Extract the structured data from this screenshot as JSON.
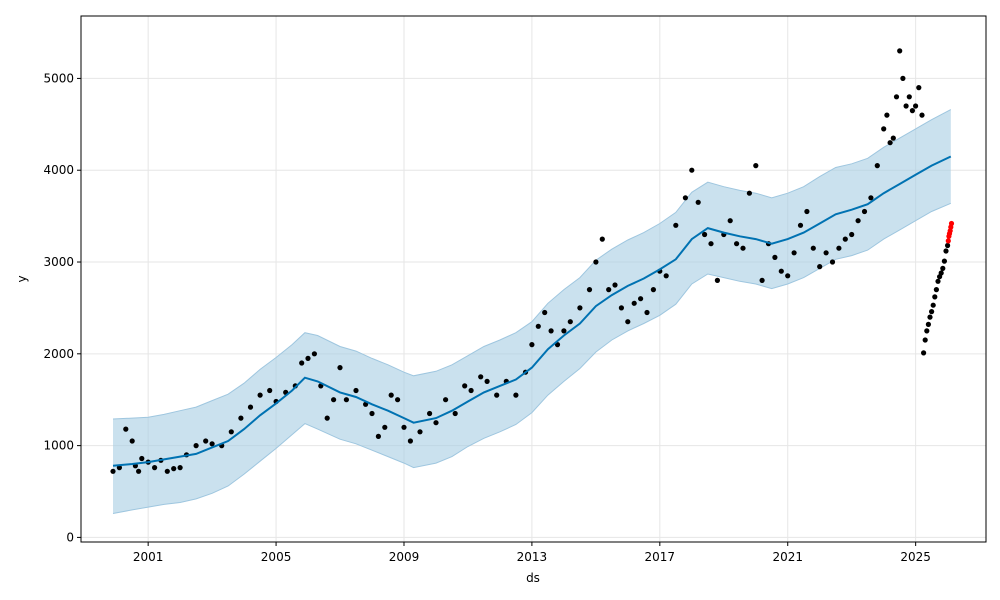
{
  "chart_data": {
    "type": "scatter",
    "title": "",
    "xlabel": "ds",
    "ylabel": "y",
    "xlim": [
      1998.9,
      2027.2
    ],
    "ylim": [
      -50,
      5680
    ],
    "grid": true,
    "legend": "none",
    "x_ticks": [
      2001,
      2005,
      2009,
      2013,
      2017,
      2021,
      2025
    ],
    "x_tick_labels": [
      "2001",
      "2005",
      "2009",
      "2013",
      "2017",
      "2021",
      "2025"
    ],
    "y_ticks": [
      0,
      1000,
      2000,
      3000,
      4000,
      5000
    ],
    "y_tick_labels": [
      "0",
      "1000",
      "2000",
      "3000",
      "4000",
      "5000"
    ],
    "colors": {
      "observed": "#000000",
      "recent": "#ff0000",
      "forecast_line": "#0072b2",
      "interval_fill": "#a6cde2",
      "interval_edge": "#9ec6df",
      "grid": "#e6e6e6"
    },
    "series": [
      {
        "role": "forecast",
        "x": [
          1999.9,
          2000.5,
          2001.0,
          2001.5,
          2002.0,
          2002.5,
          2003.0,
          2003.5,
          2004.0,
          2004.5,
          2005.0,
          2005.5,
          2005.9,
          2006.3,
          2007.0,
          2007.5,
          2008.0,
          2008.5,
          2009.0,
          2009.3,
          2010.0,
          2010.5,
          2011.0,
          2011.5,
          2012.0,
          2012.5,
          2013.0,
          2013.5,
          2014.0,
          2014.5,
          2015.0,
          2015.5,
          2016.0,
          2016.5,
          2017.0,
          2017.5,
          2018.0,
          2018.5,
          2019.0,
          2019.5,
          2020.0,
          2020.5,
          2021.0,
          2021.5,
          2022.0,
          2022.5,
          2023.0,
          2023.5,
          2024.0,
          2024.5,
          2025.0,
          2025.5,
          2026.1
        ],
        "yhat": [
          780,
          800,
          820,
          850,
          880,
          910,
          980,
          1050,
          1180,
          1330,
          1460,
          1600,
          1740,
          1700,
          1580,
          1530,
          1450,
          1380,
          1300,
          1250,
          1300,
          1380,
          1480,
          1580,
          1650,
          1720,
          1850,
          2050,
          2200,
          2330,
          2520,
          2640,
          2740,
          2820,
          2920,
          3030,
          3250,
          3370,
          3320,
          3280,
          3250,
          3200,
          3250,
          3320,
          3420,
          3520,
          3570,
          3630,
          3750,
          3850,
          3950,
          4050,
          4150
        ],
        "yhat_lower": [
          260,
          300,
          330,
          360,
          380,
          420,
          480,
          560,
          690,
          830,
          970,
          1120,
          1240,
          1180,
          1070,
          1020,
          950,
          880,
          810,
          760,
          810,
          880,
          990,
          1080,
          1150,
          1230,
          1360,
          1550,
          1700,
          1840,
          2020,
          2150,
          2250,
          2330,
          2420,
          2540,
          2760,
          2870,
          2830,
          2790,
          2760,
          2710,
          2760,
          2830,
          2930,
          3030,
          3070,
          3130,
          3250,
          3350,
          3450,
          3550,
          3640
        ],
        "yhat_upper": [
          1290,
          1300,
          1310,
          1340,
          1380,
          1420,
          1490,
          1560,
          1680,
          1830,
          1960,
          2100,
          2230,
          2200,
          2080,
          2030,
          1950,
          1880,
          1800,
          1760,
          1810,
          1880,
          1980,
          2080,
          2150,
          2230,
          2350,
          2550,
          2700,
          2830,
          3020,
          3140,
          3240,
          3320,
          3420,
          3540,
          3760,
          3870,
          3820,
          3780,
          3750,
          3700,
          3750,
          3820,
          3930,
          4030,
          4070,
          4130,
          4250,
          4350,
          4450,
          4550,
          4660
        ]
      },
      {
        "role": "observed",
        "x": [
          1999.9,
          2000.1,
          2000.3,
          2000.5,
          2000.6,
          2000.7,
          2000.8,
          2001.0,
          2001.2,
          2001.4,
          2001.6,
          2001.8,
          2002.0,
          2002.2,
          2002.5,
          2002.8,
          2003.0,
          2003.3,
          2003.6,
          2003.9,
          2004.2,
          2004.5,
          2004.8,
          2005.0,
          2005.3,
          2005.6,
          2005.8,
          2006.0,
          2006.2,
          2006.4,
          2006.6,
          2006.8,
          2007.0,
          2007.2,
          2007.5,
          2007.8,
          2008.0,
          2008.2,
          2008.4,
          2008.6,
          2008.8,
          2009.0,
          2009.2,
          2009.5,
          2009.8,
          2010.0,
          2010.3,
          2010.6,
          2010.9,
          2011.1,
          2011.4,
          2011.6,
          2011.9,
          2012.2,
          2012.5,
          2012.8,
          2013.0,
          2013.2,
          2013.4,
          2013.6,
          2013.8,
          2014.0,
          2014.2,
          2014.5,
          2014.8,
          2015.0,
          2015.2,
          2015.4,
          2015.6,
          2015.8,
          2016.0,
          2016.2,
          2016.4,
          2016.6,
          2016.8,
          2017.0,
          2017.2,
          2017.5,
          2017.8,
          2018.0,
          2018.2,
          2018.4,
          2018.6,
          2018.8,
          2019.0,
          2019.2,
          2019.4,
          2019.6,
          2019.8,
          2020.0,
          2020.2,
          2020.4,
          2020.6,
          2020.8,
          2021.0,
          2021.2,
          2021.4,
          2021.6,
          2021.8,
          2022.0,
          2022.2,
          2022.4,
          2022.6,
          2022.8,
          2023.0,
          2023.2,
          2023.4,
          2023.6,
          2023.8,
          2024.0,
          2024.1,
          2024.2,
          2024.3,
          2024.4,
          2024.5,
          2024.6,
          2024.7,
          2024.8,
          2024.9,
          2025.0,
          2025.1,
          2025.2
        ],
        "y": [
          720,
          760,
          1180,
          1050,
          780,
          720,
          860,
          820,
          760,
          840,
          720,
          750,
          760,
          900,
          1000,
          1050,
          1020,
          1000,
          1150,
          1300,
          1420,
          1550,
          1600,
          1480,
          1580,
          1650,
          1900,
          1950,
          2000,
          1650,
          1300,
          1500,
          1850,
          1500,
          1600,
          1450,
          1350,
          1100,
          1200,
          1550,
          1500,
          1200,
          1050,
          1150,
          1350,
          1250,
          1500,
          1350,
          1650,
          1600,
          1750,
          1700,
          1550,
          1700,
          1550,
          1800,
          2100,
          2300,
          2450,
          2250,
          2100,
          2250,
          2350,
          2500,
          2700,
          3000,
          3250,
          2700,
          2750,
          2500,
          2350,
          2550,
          2600,
          2450,
          2700,
          2900,
          2850,
          3400,
          3700,
          4000,
          3650,
          3300,
          3200,
          2800,
          3300,
          3450,
          3200,
          3150,
          3750,
          4050,
          2800,
          3200,
          3050,
          2900,
          2850,
          3100,
          3400,
          3550,
          3150,
          2950,
          3100,
          3000,
          3150,
          3250,
          3300,
          3450,
          3550,
          3700,
          4050,
          4450,
          4600,
          4300,
          4350,
          4800,
          5300,
          5000,
          4700,
          4800,
          4650,
          4700,
          4900,
          4600
        ]
      },
      {
        "role": "observed-rebound",
        "x": [
          2025.25,
          2025.3,
          2025.35,
          2025.4,
          2025.45,
          2025.5,
          2025.55,
          2025.6,
          2025.65,
          2025.7,
          2025.75,
          2025.8,
          2025.85,
          2025.9,
          2025.95,
          2026.0
        ],
        "y": [
          2010,
          2150,
          2250,
          2320,
          2400,
          2460,
          2530,
          2620,
          2700,
          2790,
          2840,
          2880,
          2930,
          3010,
          3120,
          3180
        ]
      },
      {
        "role": "recent",
        "x": [
          2026.02,
          2026.04,
          2026.06,
          2026.08,
          2026.1,
          2026.12
        ],
        "y": [
          3230,
          3280,
          3310,
          3340,
          3380,
          3420
        ]
      }
    ]
  }
}
